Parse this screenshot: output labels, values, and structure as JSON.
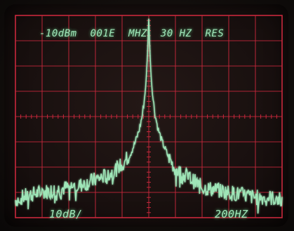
{
  "screen": {
    "reference_level": "-10dBm",
    "center_frequency": "001E",
    "frequency_unit": "MHZ",
    "resolution_bandwidth": "30 HZ",
    "resolution_label": "RES",
    "vertical_scale": "10dB/",
    "frequency_span": "200HZ"
  },
  "colors": {
    "graticule": "#c8283c",
    "trace": "#9fe6b8",
    "background": "#170f0e"
  },
  "chart_data": {
    "type": "line",
    "grid": true,
    "grid_divisions": {
      "x": 10,
      "y": 8
    },
    "ylim": [
      -90,
      -10
    ],
    "xlim": [
      -100,
      100
    ],
    "series": [
      {
        "x": [
          -100,
          -90,
          -80,
          -70,
          -60,
          -50,
          -40,
          -30,
          -20,
          -14,
          -10,
          -7,
          -5,
          -3,
          -2,
          -1,
          0,
          1,
          2,
          3,
          5,
          7,
          10,
          14,
          20,
          30,
          40,
          50,
          60,
          70,
          80,
          90,
          100
        ],
        "values": [
          -83,
          -81,
          -80,
          -79,
          -78,
          -77,
          -75,
          -73,
          -69,
          -65,
          -60,
          -55,
          -50,
          -42,
          -36,
          -26,
          -11,
          -26,
          -36,
          -42,
          -50,
          -55,
          -60,
          -65,
          -71,
          -74,
          -78,
          -79,
          -80,
          -81,
          -82,
          -82,
          -83
        ]
      }
    ]
  }
}
